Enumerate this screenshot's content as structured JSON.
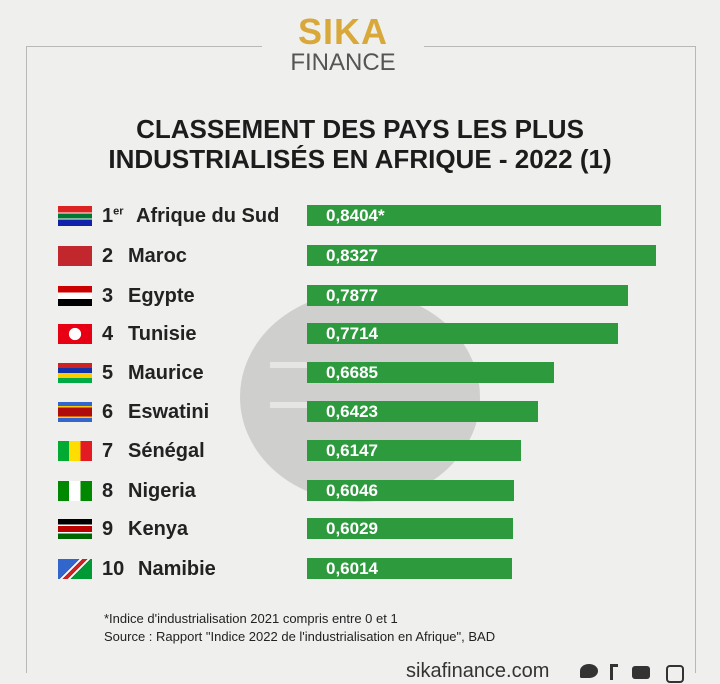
{
  "logo": {
    "line1": "SIKA",
    "line2": "FINANCE"
  },
  "watermark": "SIKA",
  "chart_data": {
    "type": "bar",
    "orientation": "horizontal",
    "title": "CLASSEMENT DES PAYS LES PLUS INDUSTRIALISÉS EN AFRIQUE - 2022 (1)",
    "title_line1": "CLASSEMENT DES PAYS LES PLUS",
    "title_line2": "INDUSTRIALISÉS EN AFRIQUE - 2022 (1)",
    "categories": [
      "Afrique du Sud",
      "Maroc",
      "Egypte",
      "Tunisie",
      "Maurice",
      "Eswatini",
      "Sénégal",
      "Nigeria",
      "Kenya",
      "Namibie"
    ],
    "ranks": [
      "1",
      "2",
      "3",
      "4",
      "5",
      "6",
      "7",
      "8",
      "9",
      "10"
    ],
    "rank_suffix_first": "er",
    "values": [
      0.8404,
      0.8327,
      0.7877,
      0.7714,
      0.6685,
      0.6423,
      0.6147,
      0.6046,
      0.6029,
      0.6014
    ],
    "labels": [
      "0,8404*",
      "0,8327",
      "0,7877",
      "0,7714",
      "0,6685",
      "0,6423",
      "0,6147",
      "0,6046",
      "0,6029",
      "0,6014"
    ],
    "bar_color": "#2e9a3e"
  },
  "notes": {
    "line1": "*Indice d'industrialisation 2021 compris entre 0 et 1",
    "line2": "Source : Rapport \"Indice 2022 de l'industrialisation en Afrique\", BAD"
  },
  "footer": {
    "site": "sikafinance.com"
  }
}
